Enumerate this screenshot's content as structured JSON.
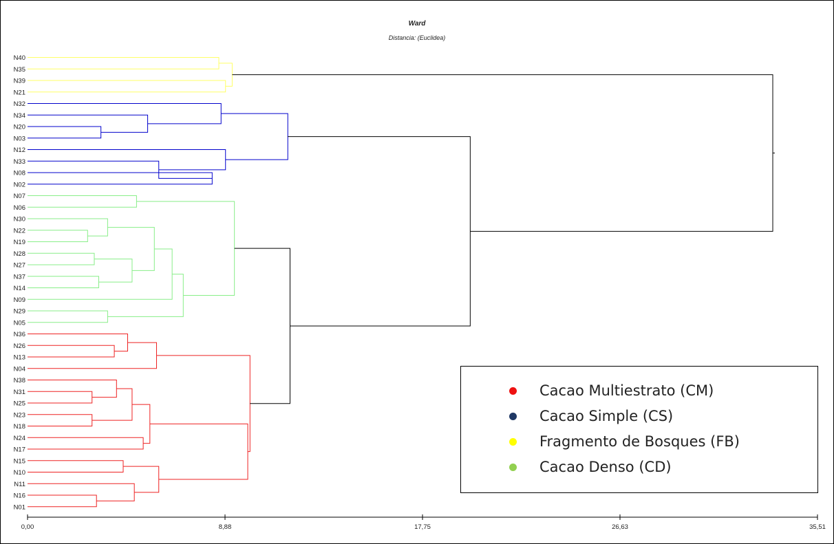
{
  "chart_data": {
    "type": "dendrogram",
    "title": "Ward",
    "subtitle": "Distancia: (Euclidea)",
    "x_ticks": [
      "0,00",
      "8,88",
      "17,75",
      "26,63",
      "35,51"
    ],
    "xlim": [
      0,
      35.51
    ],
    "leaves": [
      "N40",
      "N35",
      "N39",
      "N21",
      "N32",
      "N34",
      "N20",
      "N03",
      "N12",
      "N33",
      "N08",
      "N02",
      "N07",
      "N06",
      "N30",
      "N22",
      "N19",
      "N28",
      "N27",
      "N37",
      "N14",
      "N09",
      "N29",
      "N05",
      "N36",
      "N26",
      "N13",
      "N04",
      "N38",
      "N31",
      "N25",
      "N23",
      "N18",
      "N24",
      "N17",
      "N15",
      "N10",
      "N11",
      "N16",
      "N01"
    ],
    "merges": [
      {
        "a": "N40",
        "b": "N35",
        "height": 8.6,
        "color": "#ffff66"
      },
      {
        "a": "N39",
        "b": "N21",
        "height": 8.9,
        "color": "#ffff66"
      },
      {
        "a": "m0",
        "b": "m1",
        "height": 9.2,
        "color": "#ffff66"
      },
      {
        "a": "N20",
        "b": "N03",
        "height": 3.3,
        "color": "#0000cc"
      },
      {
        "a": "N34",
        "b": "m3",
        "height": 5.4,
        "color": "#0000cc"
      },
      {
        "a": "N32",
        "b": "m4",
        "height": 8.7,
        "color": "#0000cc"
      },
      {
        "a": "N08",
        "b": "N02",
        "height": 8.3,
        "color": "#0000cc"
      },
      {
        "a": "N33",
        "b": "m6",
        "height": 5.9,
        "color": "#0000cc"
      },
      {
        "a": "N12",
        "b": "m7",
        "height": 8.9,
        "color": "#0000cc"
      },
      {
        "a": "m5",
        "b": "m8",
        "height": 11.7,
        "color": "#0000cc"
      },
      {
        "a": "N07",
        "b": "N06",
        "height": 4.9,
        "color": "#88ee88"
      },
      {
        "a": "N22",
        "b": "N19",
        "height": 2.7,
        "color": "#88ee88"
      },
      {
        "a": "N30",
        "b": "m11",
        "height": 3.6,
        "color": "#88ee88"
      },
      {
        "a": "N28",
        "b": "N27",
        "height": 3.0,
        "color": "#88ee88"
      },
      {
        "a": "N37",
        "b": "N14",
        "height": 3.2,
        "color": "#88ee88"
      },
      {
        "a": "m13",
        "b": "m14",
        "height": 4.7,
        "color": "#88ee88"
      },
      {
        "a": "m12",
        "b": "m15",
        "height": 5.7,
        "color": "#88ee88"
      },
      {
        "a": "m16",
        "b": "N09",
        "height": 6.5,
        "color": "#88ee88"
      },
      {
        "a": "N29",
        "b": "N05",
        "height": 3.6,
        "color": "#88ee88"
      },
      {
        "a": "m17",
        "b": "m18",
        "height": 7.0,
        "color": "#88ee88"
      },
      {
        "a": "m10",
        "b": "m19",
        "height": 9.3,
        "color": "#88ee88"
      },
      {
        "a": "N26",
        "b": "N13",
        "height": 3.9,
        "color": "#ee2222"
      },
      {
        "a": "N36",
        "b": "m21",
        "height": 4.5,
        "color": "#ee2222"
      },
      {
        "a": "m22",
        "b": "N04",
        "height": 5.8,
        "color": "#ee2222"
      },
      {
        "a": "N31",
        "b": "N25",
        "height": 2.9,
        "color": "#ee2222"
      },
      {
        "a": "N38",
        "b": "m24",
        "height": 4.0,
        "color": "#ee2222"
      },
      {
        "a": "N23",
        "b": "N18",
        "height": 2.9,
        "color": "#ee2222"
      },
      {
        "a": "m25",
        "b": "m26",
        "height": 4.7,
        "color": "#ee2222"
      },
      {
        "a": "N24",
        "b": "N17",
        "height": 5.2,
        "color": "#ee2222"
      },
      {
        "a": "m27",
        "b": "m28",
        "height": 5.5,
        "color": "#ee2222"
      },
      {
        "a": "N15",
        "b": "N10",
        "height": 4.3,
        "color": "#ee2222"
      },
      {
        "a": "N16",
        "b": "N01",
        "height": 3.1,
        "color": "#ee2222"
      },
      {
        "a": "N11",
        "b": "m31",
        "height": 4.8,
        "color": "#ee2222"
      },
      {
        "a": "m30",
        "b": "m32",
        "height": 5.9,
        "color": "#ee2222"
      },
      {
        "a": "m29",
        "b": "m33",
        "height": 9.9,
        "color": "#ee2222"
      },
      {
        "a": "m23",
        "b": "m34",
        "height": 10.0,
        "color": "#ee2222"
      },
      {
        "a": "m20",
        "b": "m35",
        "height": 11.8,
        "color": "#000000"
      },
      {
        "a": "m9",
        "b": "m36",
        "height": 19.9,
        "color": "#000000"
      },
      {
        "a": "m2",
        "b": "m37",
        "height": 33.5,
        "color": "#000000"
      }
    ],
    "legend_position": "bottom-right",
    "legend": [
      {
        "label": "Cacao Multiestrato (CM)",
        "color": "#ee1111"
      },
      {
        "label": "Cacao Simple (CS)",
        "color": "#1f3864"
      },
      {
        "label": "Fragmento de Bosques (FB)",
        "color": "#ffff00"
      },
      {
        "label": "Cacao Denso (CD)",
        "color": "#92d050"
      }
    ]
  }
}
